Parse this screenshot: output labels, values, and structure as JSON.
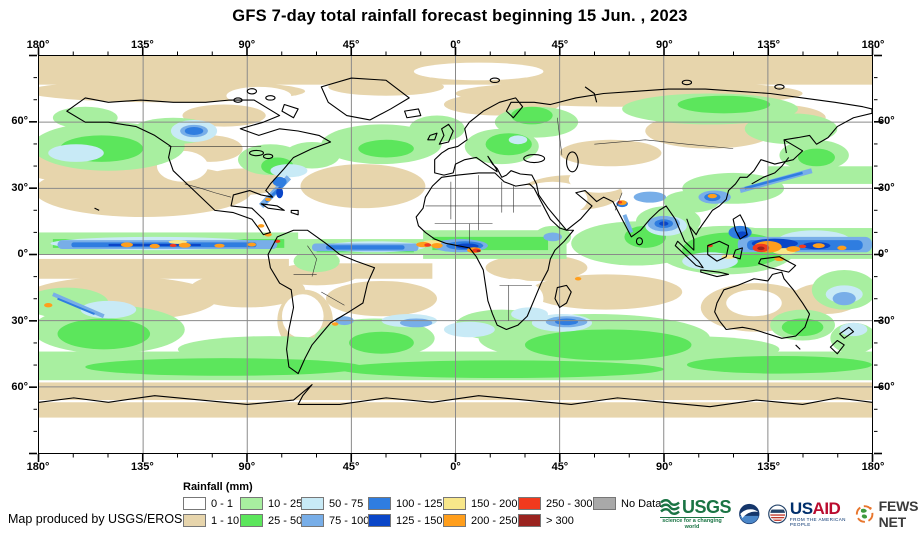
{
  "title": "GFS 7-day total rainfall forecast beginning 15 Jun. , 2023",
  "map": {
    "axes": {
      "top": [
        "180°",
        "135°",
        "90°",
        "45°",
        "0°",
        "45°",
        "90°",
        "135°",
        "180°"
      ],
      "bottom": [
        "180°",
        "135°",
        "90°",
        "45°",
        "0°",
        "45°",
        "90°",
        "135°",
        "180°"
      ],
      "left": [
        "60°",
        "30°",
        "0°",
        "30°",
        "60°"
      ],
      "right": [
        "60°",
        "30°",
        "0°",
        "30°",
        "60°"
      ]
    },
    "grid": {
      "lon_major_deg": 45,
      "lon_minor_deg": 15,
      "lat_major_deg": 30,
      "lat_minor_deg": 10
    }
  },
  "legend": {
    "title": "Rainfall (mm)",
    "items": [
      {
        "label": "0 - 1",
        "color": "#FFFFFF"
      },
      {
        "label": "1 - 10",
        "color": "#E7D5AC"
      },
      {
        "label": "10 - 25",
        "color": "#A8EFA0"
      },
      {
        "label": "25 - 50",
        "color": "#5CE65C"
      },
      {
        "label": "50 - 75",
        "color": "#C8EAF6"
      },
      {
        "label": "75 - 100",
        "color": "#78AEE8"
      },
      {
        "label": "100 - 125",
        "color": "#2F7DE0"
      },
      {
        "label": "125 - 150",
        "color": "#0A46C8"
      },
      {
        "label": "150 - 200",
        "color": "#F8E78A"
      },
      {
        "label": "200 - 250",
        "color": "#FF9E1C"
      },
      {
        "label": "250 - 300",
        "color": "#F23A1E"
      },
      {
        "label": "> 300",
        "color": "#9A231F"
      },
      {
        "label": "No Data",
        "color": "#A9A9A9"
      }
    ]
  },
  "attribution": "Map produced by USGS/EROS",
  "logos": {
    "usgs": {
      "name": "USGS",
      "tagline": "science for a changing world"
    },
    "noaa": {
      "name": "noaa-seal"
    },
    "usaid": {
      "wordmark_us": "US",
      "wordmark_aid": "AID",
      "tagline": "FROM THE AMERICAN PEOPLE"
    },
    "fewsnet": {
      "name": "FEWS NET"
    }
  }
}
